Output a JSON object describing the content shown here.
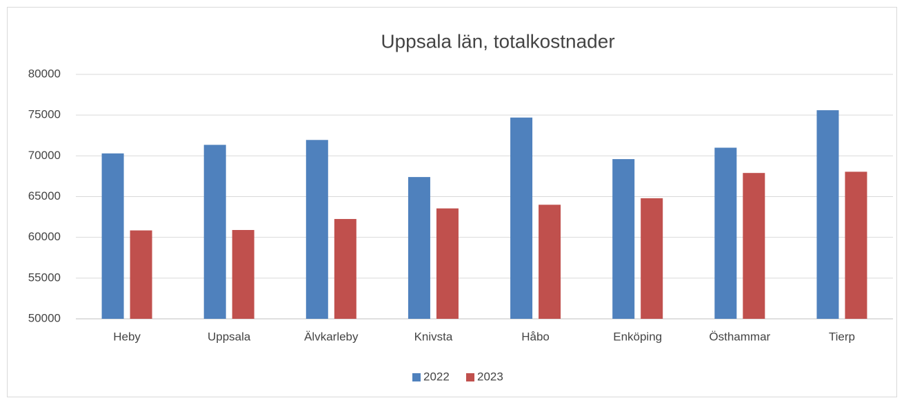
{
  "chart_data": {
    "type": "bar",
    "title": "Uppsala län, totalkostnader",
    "categories": [
      "Heby",
      "Uppsala",
      "Älvkarleby",
      "Knivsta",
      "Håbo",
      "Enköping",
      "Östhammar",
      "Tierp"
    ],
    "series": [
      {
        "name": "2022",
        "color": "#4f81bd",
        "values": [
          70300,
          71350,
          71950,
          67400,
          74700,
          69600,
          71000,
          75600
        ]
      },
      {
        "name": "2023",
        "color": "#c0504d",
        "values": [
          60850,
          60900,
          62250,
          63550,
          64000,
          64800,
          67900,
          68050
        ]
      }
    ],
    "ylim": [
      50000,
      80000
    ],
    "yticks": [
      50000,
      55000,
      60000,
      65000,
      70000,
      75000,
      80000
    ],
    "grid": true,
    "legend": "bottom"
  }
}
